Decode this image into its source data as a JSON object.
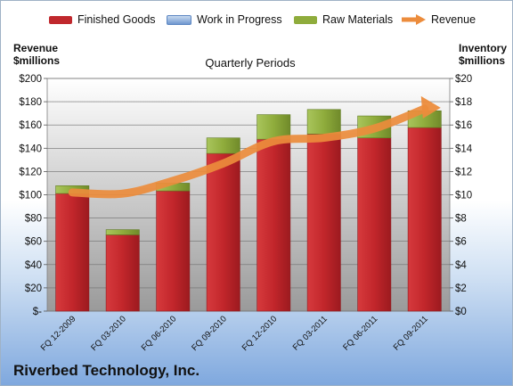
{
  "chart_data": {
    "type": "bar",
    "subtitle": "Quarterly Periods",
    "categories": [
      "FQ 12-2009",
      "FQ 03-2010",
      "FQ 06-2010",
      "FQ 09-2010",
      "FQ 12-2010",
      "FQ 03-2011",
      "FQ 06-2011",
      "FQ 09-2011"
    ],
    "series": [
      {
        "name": "Finished Goods",
        "axis": "right",
        "stack": true,
        "color": "#c0282d",
        "values": [
          9.1,
          5.9,
          9.3,
          12.2,
          13.3,
          13.7,
          13.4,
          14.2
        ]
      },
      {
        "name": "Work in Progress",
        "axis": "right",
        "stack": true,
        "color": "#4f81bd",
        "values": [
          0,
          0,
          0,
          0,
          0,
          0,
          0,
          0
        ]
      },
      {
        "name": "Raw Materials",
        "axis": "right",
        "stack": true,
        "color": "#8fac3c",
        "values": [
          0.6,
          0.4,
          0.6,
          1.2,
          1.9,
          1.9,
          1.7,
          1.3
        ]
      },
      {
        "name": "Revenue",
        "axis": "left",
        "type": "line",
        "color": "#ec8c3c",
        "values": [
          102,
          101,
          112,
          127,
          146,
          149,
          157,
          174
        ]
      }
    ],
    "left_axis": {
      "label_line1": "Revenue",
      "label_line2": "$millions",
      "min": 0,
      "max": 200,
      "step": 20,
      "format": "dollar",
      "zero_label": "$-"
    },
    "right_axis": {
      "label_line1": "Inventory",
      "label_line2": "$millions",
      "min": 0,
      "max": 18,
      "step": 2,
      "format": "dollar"
    },
    "legend_position": "top",
    "grid": true
  },
  "company": "Riverbed Technology, Inc."
}
